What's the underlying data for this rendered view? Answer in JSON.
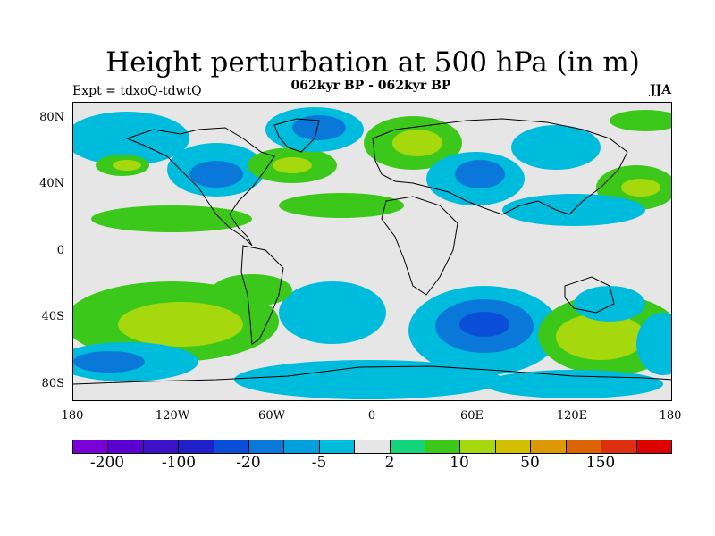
{
  "title": "Height perturbation at 500 hPa (in m)",
  "subtitle": "062kyr BP - 062kyr BP",
  "expt_label": "Expt = tdxoQ-tdwtQ",
  "season": "JJA",
  "map_data": {
    "type": "contour-map",
    "projection": "cylindrical-equidistant",
    "lon_range": [
      -180,
      180
    ],
    "lat_range": [
      -90,
      90
    ],
    "lat_ticks": [
      "80N",
      "40N",
      "0",
      "40S",
      "80S"
    ],
    "lon_ticks": [
      "180",
      "120W",
      "60W",
      "0",
      "60E",
      "120E",
      "180"
    ],
    "colorbar": {
      "colors": [
        "#7a00d8",
        "#5a00d0",
        "#3c12c8",
        "#1f20c8",
        "#0a4ed8",
        "#0a78d8",
        "#00a0dc",
        "#00bcdc",
        "#e6e6e6",
        "#14d47c",
        "#3cc81a",
        "#a6d80e",
        "#d2c000",
        "#dc9800",
        "#dc6400",
        "#dc3010",
        "#dc0000"
      ],
      "labels": [
        "-200",
        "-100",
        "-20",
        "-5",
        "2",
        "10",
        "50",
        "150"
      ]
    }
  }
}
